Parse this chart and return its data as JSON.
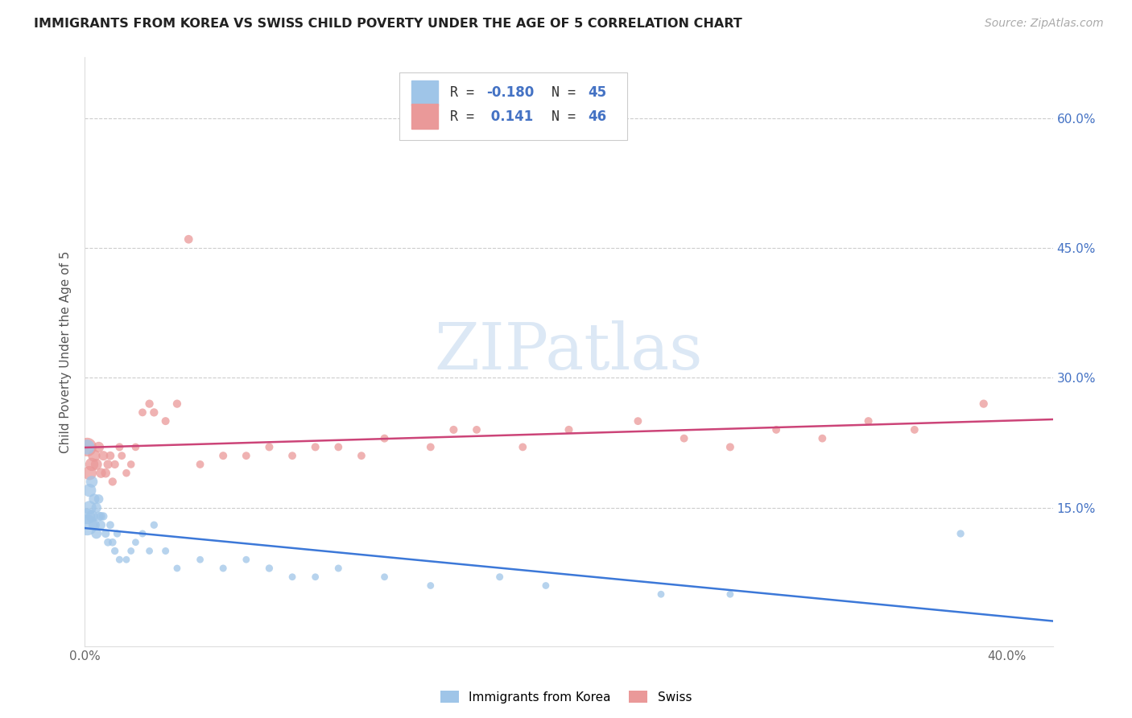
{
  "title": "IMMIGRANTS FROM KOREA VS SWISS CHILD POVERTY UNDER THE AGE OF 5 CORRELATION CHART",
  "source": "Source: ZipAtlas.com",
  "ylabel": "Child Poverty Under the Age of 5",
  "xlim": [
    0.0,
    0.42
  ],
  "ylim": [
    -0.01,
    0.67
  ],
  "ytick_values": [
    0.0,
    0.15,
    0.3,
    0.45,
    0.6
  ],
  "xtick_values": [
    0.0,
    0.05,
    0.1,
    0.15,
    0.2,
    0.25,
    0.3,
    0.35,
    0.4
  ],
  "blue_color": "#9fc5e8",
  "pink_color": "#ea9999",
  "blue_line_color": "#3c78d8",
  "pink_line_color": "#cc4478",
  "right_axis_color": "#4472c4",
  "watermark_color": "#dce8f5",
  "korea_x": [
    0.001,
    0.001,
    0.001,
    0.002,
    0.002,
    0.003,
    0.003,
    0.004,
    0.004,
    0.005,
    0.005,
    0.006,
    0.006,
    0.007,
    0.007,
    0.008,
    0.009,
    0.01,
    0.011,
    0.012,
    0.013,
    0.014,
    0.015,
    0.018,
    0.02,
    0.022,
    0.025,
    0.028,
    0.03,
    0.035,
    0.04,
    0.05,
    0.06,
    0.07,
    0.08,
    0.09,
    0.1,
    0.11,
    0.13,
    0.15,
    0.18,
    0.2,
    0.25,
    0.28,
    0.38
  ],
  "korea_y": [
    0.13,
    0.14,
    0.22,
    0.15,
    0.17,
    0.14,
    0.18,
    0.13,
    0.16,
    0.12,
    0.15,
    0.14,
    0.16,
    0.13,
    0.14,
    0.14,
    0.12,
    0.11,
    0.13,
    0.11,
    0.1,
    0.12,
    0.09,
    0.09,
    0.1,
    0.11,
    0.12,
    0.1,
    0.13,
    0.1,
    0.08,
    0.09,
    0.08,
    0.09,
    0.08,
    0.07,
    0.07,
    0.08,
    0.07,
    0.06,
    0.07,
    0.06,
    0.05,
    0.05,
    0.12
  ],
  "korea_sizes": [
    350,
    200,
    180,
    150,
    140,
    120,
    110,
    100,
    90,
    85,
    80,
    75,
    70,
    65,
    60,
    55,
    55,
    50,
    50,
    48,
    45,
    45,
    42,
    40,
    40,
    40,
    42,
    40,
    45,
    42,
    40,
    40,
    42,
    40,
    45,
    40,
    40,
    42,
    40,
    40,
    42,
    40,
    40,
    40,
    45
  ],
  "swiss_x": [
    0.001,
    0.002,
    0.003,
    0.004,
    0.005,
    0.006,
    0.007,
    0.008,
    0.009,
    0.01,
    0.011,
    0.012,
    0.013,
    0.015,
    0.016,
    0.018,
    0.02,
    0.022,
    0.025,
    0.028,
    0.03,
    0.035,
    0.04,
    0.045,
    0.05,
    0.06,
    0.07,
    0.08,
    0.09,
    0.1,
    0.11,
    0.12,
    0.13,
    0.15,
    0.16,
    0.17,
    0.19,
    0.21,
    0.24,
    0.26,
    0.28,
    0.3,
    0.32,
    0.34,
    0.36,
    0.39
  ],
  "swiss_y": [
    0.22,
    0.19,
    0.2,
    0.21,
    0.2,
    0.22,
    0.19,
    0.21,
    0.19,
    0.2,
    0.21,
    0.18,
    0.2,
    0.22,
    0.21,
    0.19,
    0.2,
    0.22,
    0.26,
    0.27,
    0.26,
    0.25,
    0.27,
    0.46,
    0.2,
    0.21,
    0.21,
    0.22,
    0.21,
    0.22,
    0.22,
    0.21,
    0.23,
    0.22,
    0.24,
    0.24,
    0.22,
    0.24,
    0.25,
    0.23,
    0.22,
    0.24,
    0.23,
    0.25,
    0.24,
    0.27
  ],
  "swiss_sizes": [
    280,
    160,
    140,
    120,
    100,
    90,
    80,
    75,
    70,
    65,
    60,
    55,
    55,
    52,
    50,
    48,
    48,
    48,
    50,
    55,
    55,
    52,
    55,
    60,
    50,
    52,
    50,
    52,
    50,
    52,
    50,
    50,
    52,
    50,
    52,
    50,
    50,
    52,
    50,
    50,
    52,
    50,
    50,
    52,
    50,
    55
  ]
}
